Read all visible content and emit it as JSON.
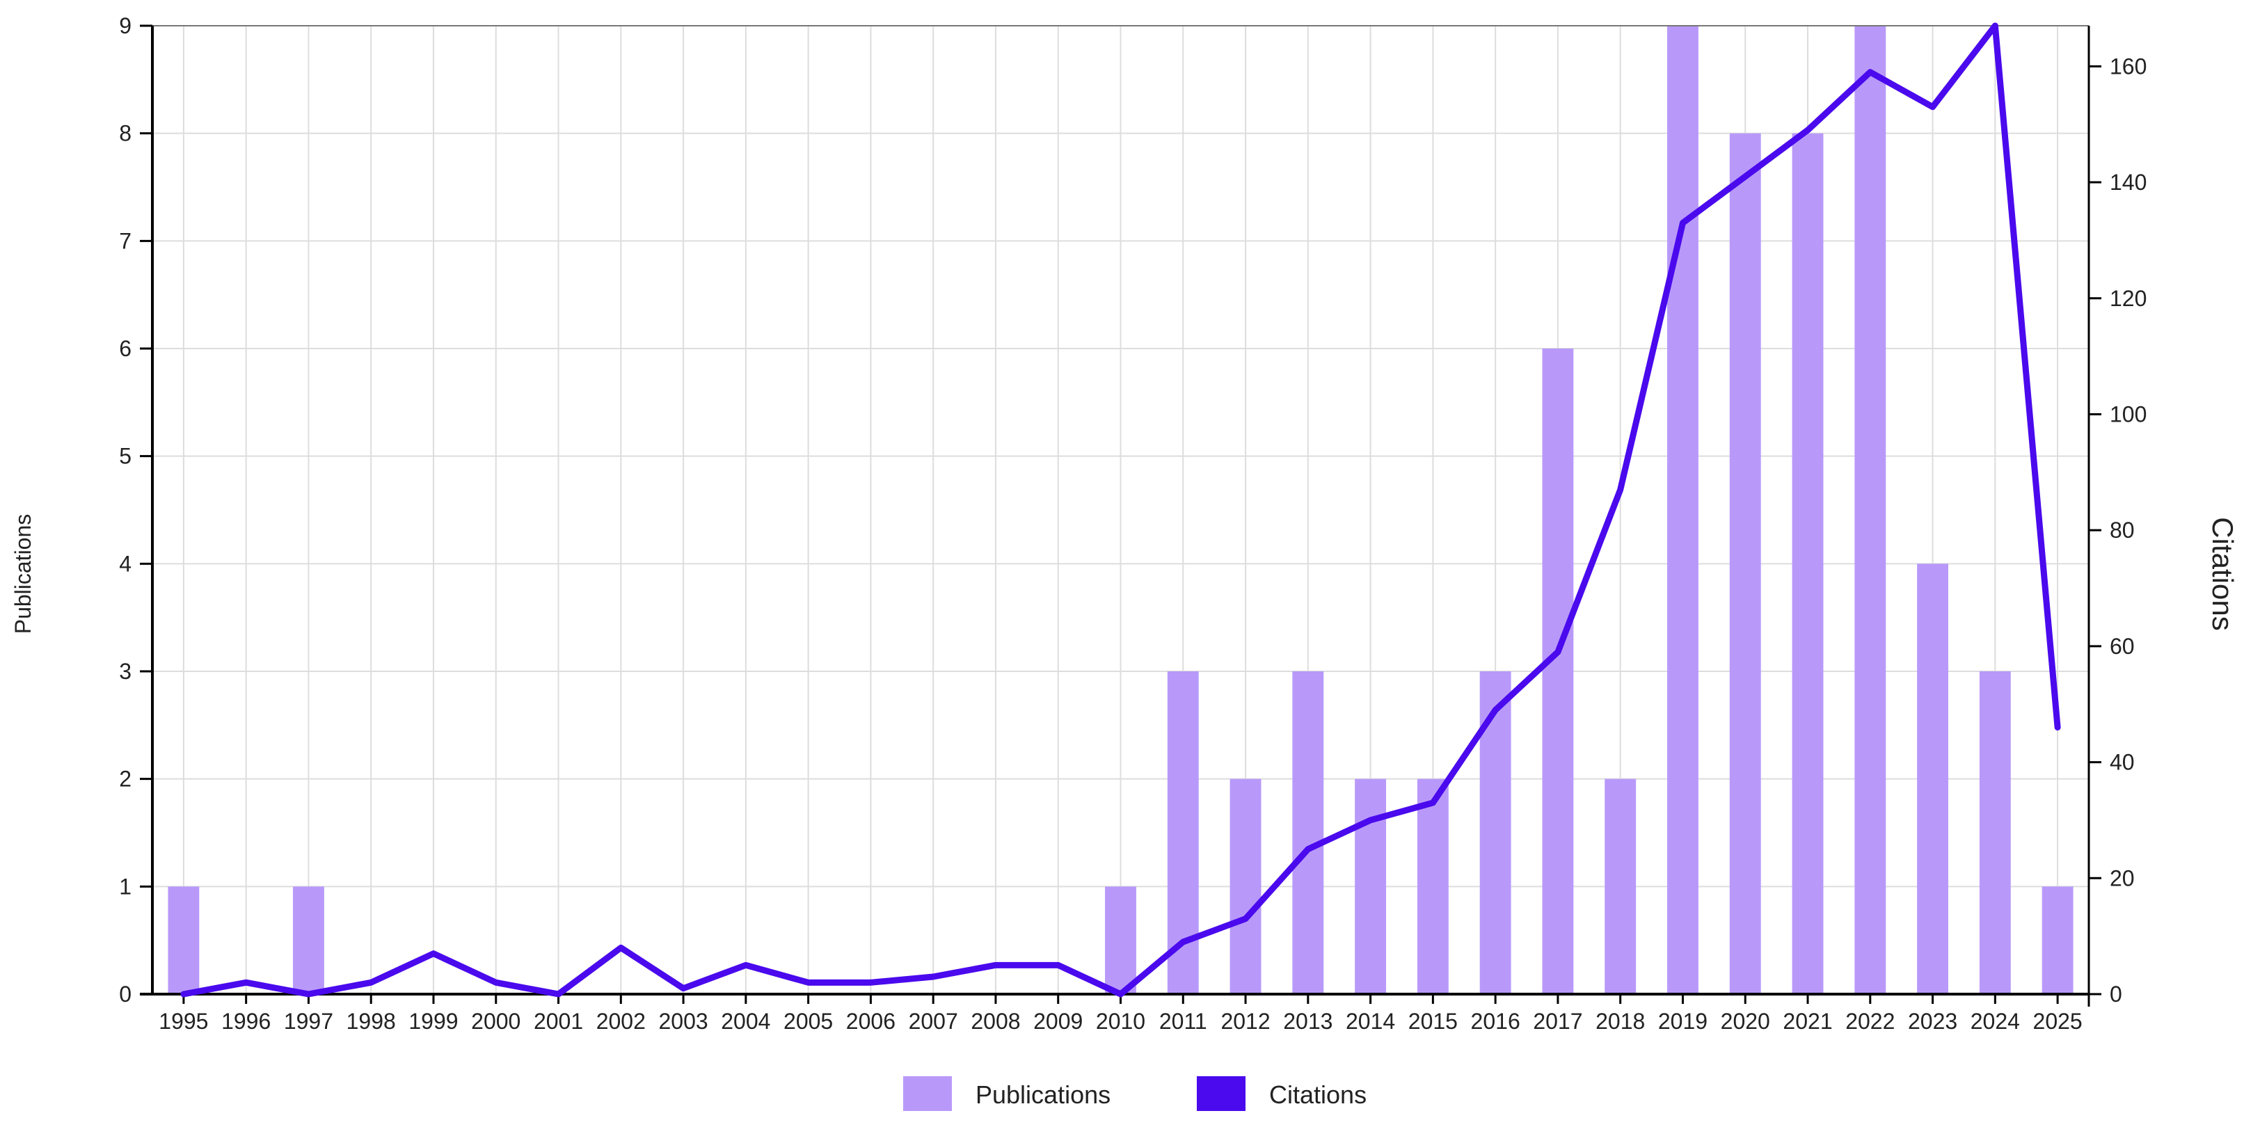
{
  "chart_data": {
    "type": "bar",
    "categories": [
      "1995",
      "1996",
      "1997",
      "1998",
      "1999",
      "2000",
      "2001",
      "2002",
      "2003",
      "2004",
      "2005",
      "2006",
      "2007",
      "2008",
      "2009",
      "2010",
      "2011",
      "2012",
      "2013",
      "2014",
      "2015",
      "2016",
      "2017",
      "2018",
      "2019",
      "2020",
      "2021",
      "2022",
      "2023",
      "2024",
      "2025"
    ],
    "series": [
      {
        "name": "Publications",
        "type": "bar",
        "axis": "left",
        "color": "#b899fa",
        "values": [
          1,
          0,
          1,
          0,
          0,
          0,
          0,
          0,
          0,
          0,
          0,
          0,
          0,
          0,
          0,
          1,
          3,
          2,
          3,
          2,
          2,
          3,
          6,
          2,
          9,
          8,
          8,
          9,
          4,
          3,
          1
        ]
      },
      {
        "name": "Citations",
        "type": "line",
        "axis": "right",
        "color": "#4a0aed",
        "values": [
          0,
          2,
          0,
          2,
          7,
          2,
          0,
          8,
          1,
          5,
          2,
          2,
          3,
          5,
          5,
          0,
          9,
          13,
          25,
          30,
          33,
          49,
          59,
          87,
          133,
          141,
          149,
          159,
          153,
          167,
          46
        ]
      }
    ],
    "ylabel": "Publications",
    "y2label": "Citations",
    "ylim": [
      0,
      9
    ],
    "y2lim": [
      0,
      167
    ],
    "yticks": [
      0,
      1,
      2,
      3,
      4,
      5,
      6,
      7,
      8,
      9
    ],
    "y2ticks": [
      0,
      20,
      40,
      60,
      80,
      100,
      120,
      140,
      160
    ],
    "grid": true,
    "legend": {
      "placement": "bottom-center"
    }
  }
}
